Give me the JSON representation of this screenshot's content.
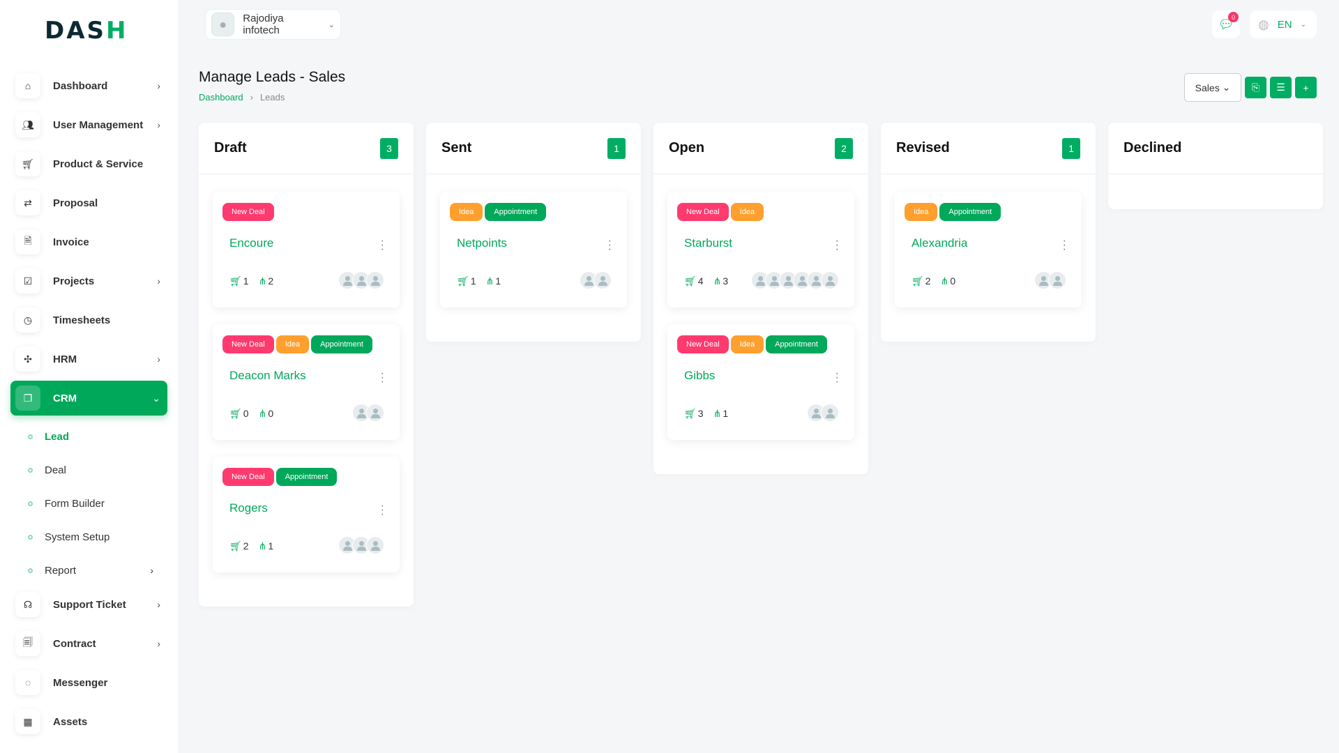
{
  "brand": {
    "logo": "DASH",
    "accent": "#00ad63"
  },
  "topbar": {
    "user": "Rajodiya infotech",
    "messages_count": "0",
    "language": "EN"
  },
  "sidebar": {
    "items": [
      {
        "label": "Dashboard",
        "icon": "home-icon",
        "chevron": true
      },
      {
        "label": "User Management",
        "icon": "users-icon",
        "chevron": true
      },
      {
        "label": "Product & Service",
        "icon": "cart-icon",
        "chevron": false
      },
      {
        "label": "Proposal",
        "icon": "proposal-icon",
        "chevron": false
      },
      {
        "label": "Invoice",
        "icon": "file-icon",
        "chevron": false
      },
      {
        "label": "Projects",
        "icon": "check-square-icon",
        "chevron": true
      },
      {
        "label": "Timesheets",
        "icon": "clock-icon",
        "chevron": false
      },
      {
        "label": "HRM",
        "icon": "hrm-icon",
        "chevron": true
      },
      {
        "label": "CRM",
        "icon": "crm-icon",
        "chevron": true,
        "active": true
      }
    ],
    "crm_sub": [
      {
        "label": "Lead",
        "active": true
      },
      {
        "label": "Deal"
      },
      {
        "label": "Form Builder"
      },
      {
        "label": "System Setup"
      },
      {
        "label": "Report",
        "chevron": true
      }
    ],
    "items_after": [
      {
        "label": "Support Ticket",
        "icon": "headset-icon",
        "chevron": true
      },
      {
        "label": "Contract",
        "icon": "contract-icon",
        "chevron": true
      },
      {
        "label": "Messenger",
        "icon": "chat-icon",
        "chevron": false
      },
      {
        "label": "Assets",
        "icon": "calculator-icon",
        "chevron": false
      }
    ]
  },
  "page": {
    "title": "Manage Leads - Sales",
    "breadcrumb": [
      "Dashboard",
      "Leads"
    ],
    "pipeline_select": "Sales"
  },
  "columns": [
    {
      "title": "Draft",
      "count": "3",
      "cards": [
        {
          "name": "Encoure",
          "tags": [
            "New Deal"
          ],
          "products": "1",
          "sources": "2",
          "users": 3
        },
        {
          "name": "Deacon Marks",
          "tags": [
            "New Deal",
            "Idea",
            "Appointment"
          ],
          "products": "0",
          "sources": "0",
          "users": 2
        },
        {
          "name": "Rogers",
          "tags": [
            "New Deal",
            "Appointment"
          ],
          "products": "2",
          "sources": "1",
          "users": 3
        }
      ]
    },
    {
      "title": "Sent",
      "count": "1",
      "cards": [
        {
          "name": "Netpoints",
          "tags": [
            "Idea",
            "Appointment"
          ],
          "products": "1",
          "sources": "1",
          "users": 2
        }
      ]
    },
    {
      "title": "Open",
      "count": "2",
      "cards": [
        {
          "name": "Starburst",
          "tags": [
            "New Deal",
            "Idea"
          ],
          "products": "4",
          "sources": "3",
          "users": 6
        },
        {
          "name": "Gibbs",
          "tags": [
            "New Deal",
            "Idea",
            "Appointment"
          ],
          "products": "3",
          "sources": "1",
          "users": 2
        }
      ]
    },
    {
      "title": "Revised",
      "count": "1",
      "cards": [
        {
          "name": "Alexandria",
          "tags": [
            "Idea",
            "Appointment"
          ],
          "products": "2",
          "sources": "0",
          "users": 2
        }
      ]
    },
    {
      "title": "Declined",
      "count": "",
      "cards": []
    }
  ]
}
